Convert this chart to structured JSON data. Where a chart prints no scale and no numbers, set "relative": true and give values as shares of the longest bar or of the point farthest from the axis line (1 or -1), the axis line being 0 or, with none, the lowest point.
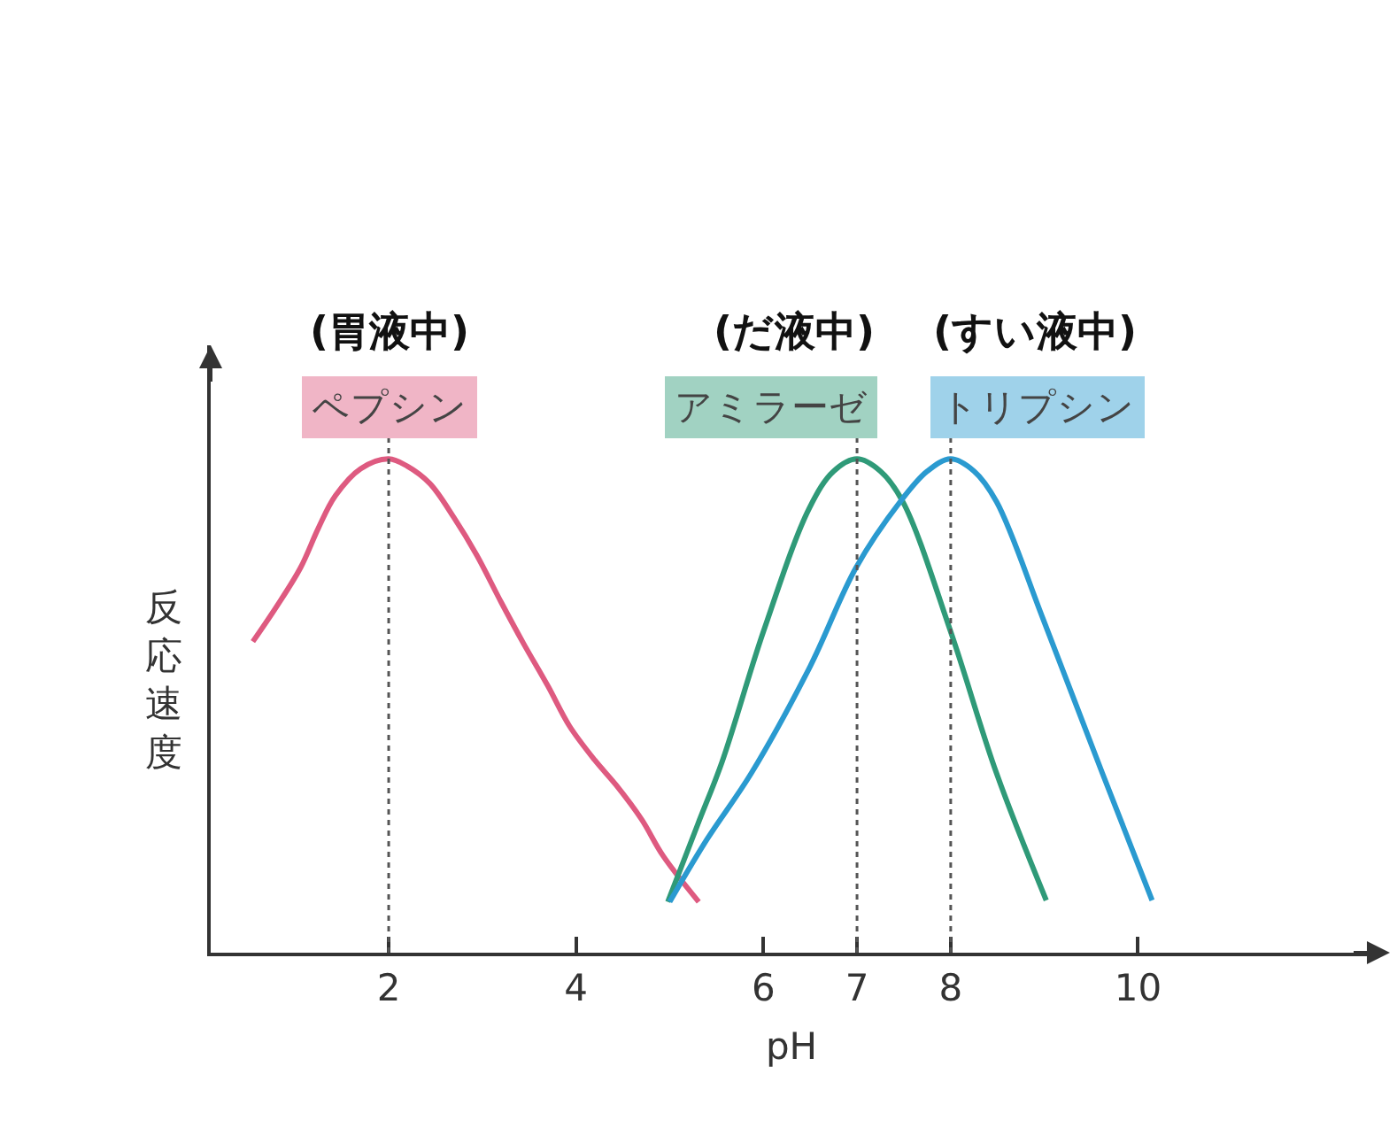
{
  "chart_data": {
    "type": "line",
    "relative": true,
    "xlabel": "pH",
    "ylabel": "反応速度",
    "xlim": [
      0.1,
      12.5
    ],
    "xticks": [
      2,
      4,
      6,
      7,
      8,
      10
    ],
    "grid": false,
    "marker": "none",
    "series": [
      {
        "name": "ペプシン",
        "color": "#de5a80",
        "x": [
          0.55,
          0.8,
          1.06,
          1.25,
          1.43,
          1.7,
          2.0,
          2.2,
          2.44,
          2.7,
          2.94,
          3.2,
          3.44,
          3.7,
          3.93,
          4.2,
          4.43,
          4.7,
          4.93,
          5.31
        ],
        "values": [
          0.63,
          0.7,
          0.78,
          0.86,
          0.925,
          0.98,
          1.0,
          0.985,
          0.95,
          0.88,
          0.805,
          0.71,
          0.626,
          0.54,
          0.459,
          0.39,
          0.339,
          0.27,
          0.196,
          0.103
        ]
      },
      {
        "name": "アミラーゼ",
        "color": "#2f9a78",
        "x": [
          4.98,
          5.3,
          5.56,
          6.0,
          6.49,
          6.75,
          7.0,
          7.25,
          7.49,
          8.0,
          8.49,
          9.02
        ],
        "values": [
          0.103,
          0.26,
          0.387,
          0.65,
          0.9,
          0.975,
          1.0,
          0.975,
          0.913,
          0.65,
          0.363,
          0.106
        ]
      },
      {
        "name": "トリプシン",
        "color": "#2a9ad0",
        "x": [
          5.0,
          5.4,
          5.87,
          6.5,
          6.99,
          7.46,
          7.75,
          8.0,
          8.25,
          8.49,
          8.99,
          9.62,
          10.15
        ],
        "values": [
          0.103,
          0.23,
          0.363,
          0.58,
          0.78,
          0.913,
          0.975,
          1.0,
          0.975,
          0.913,
          0.674,
          0.363,
          0.106
        ]
      }
    ],
    "ref_lines": [
      {
        "axis": "x",
        "value": 2,
        "color": "#555555",
        "line_style": "dotted"
      },
      {
        "axis": "x",
        "value": 7,
        "color": "#555555",
        "line_style": "dotted"
      },
      {
        "axis": "x",
        "value": 8,
        "color": "#555555",
        "line_style": "dotted"
      }
    ],
    "annotations": [
      "(胃液中)",
      "(だ液中)",
      "(すい液中)"
    ]
  }
}
